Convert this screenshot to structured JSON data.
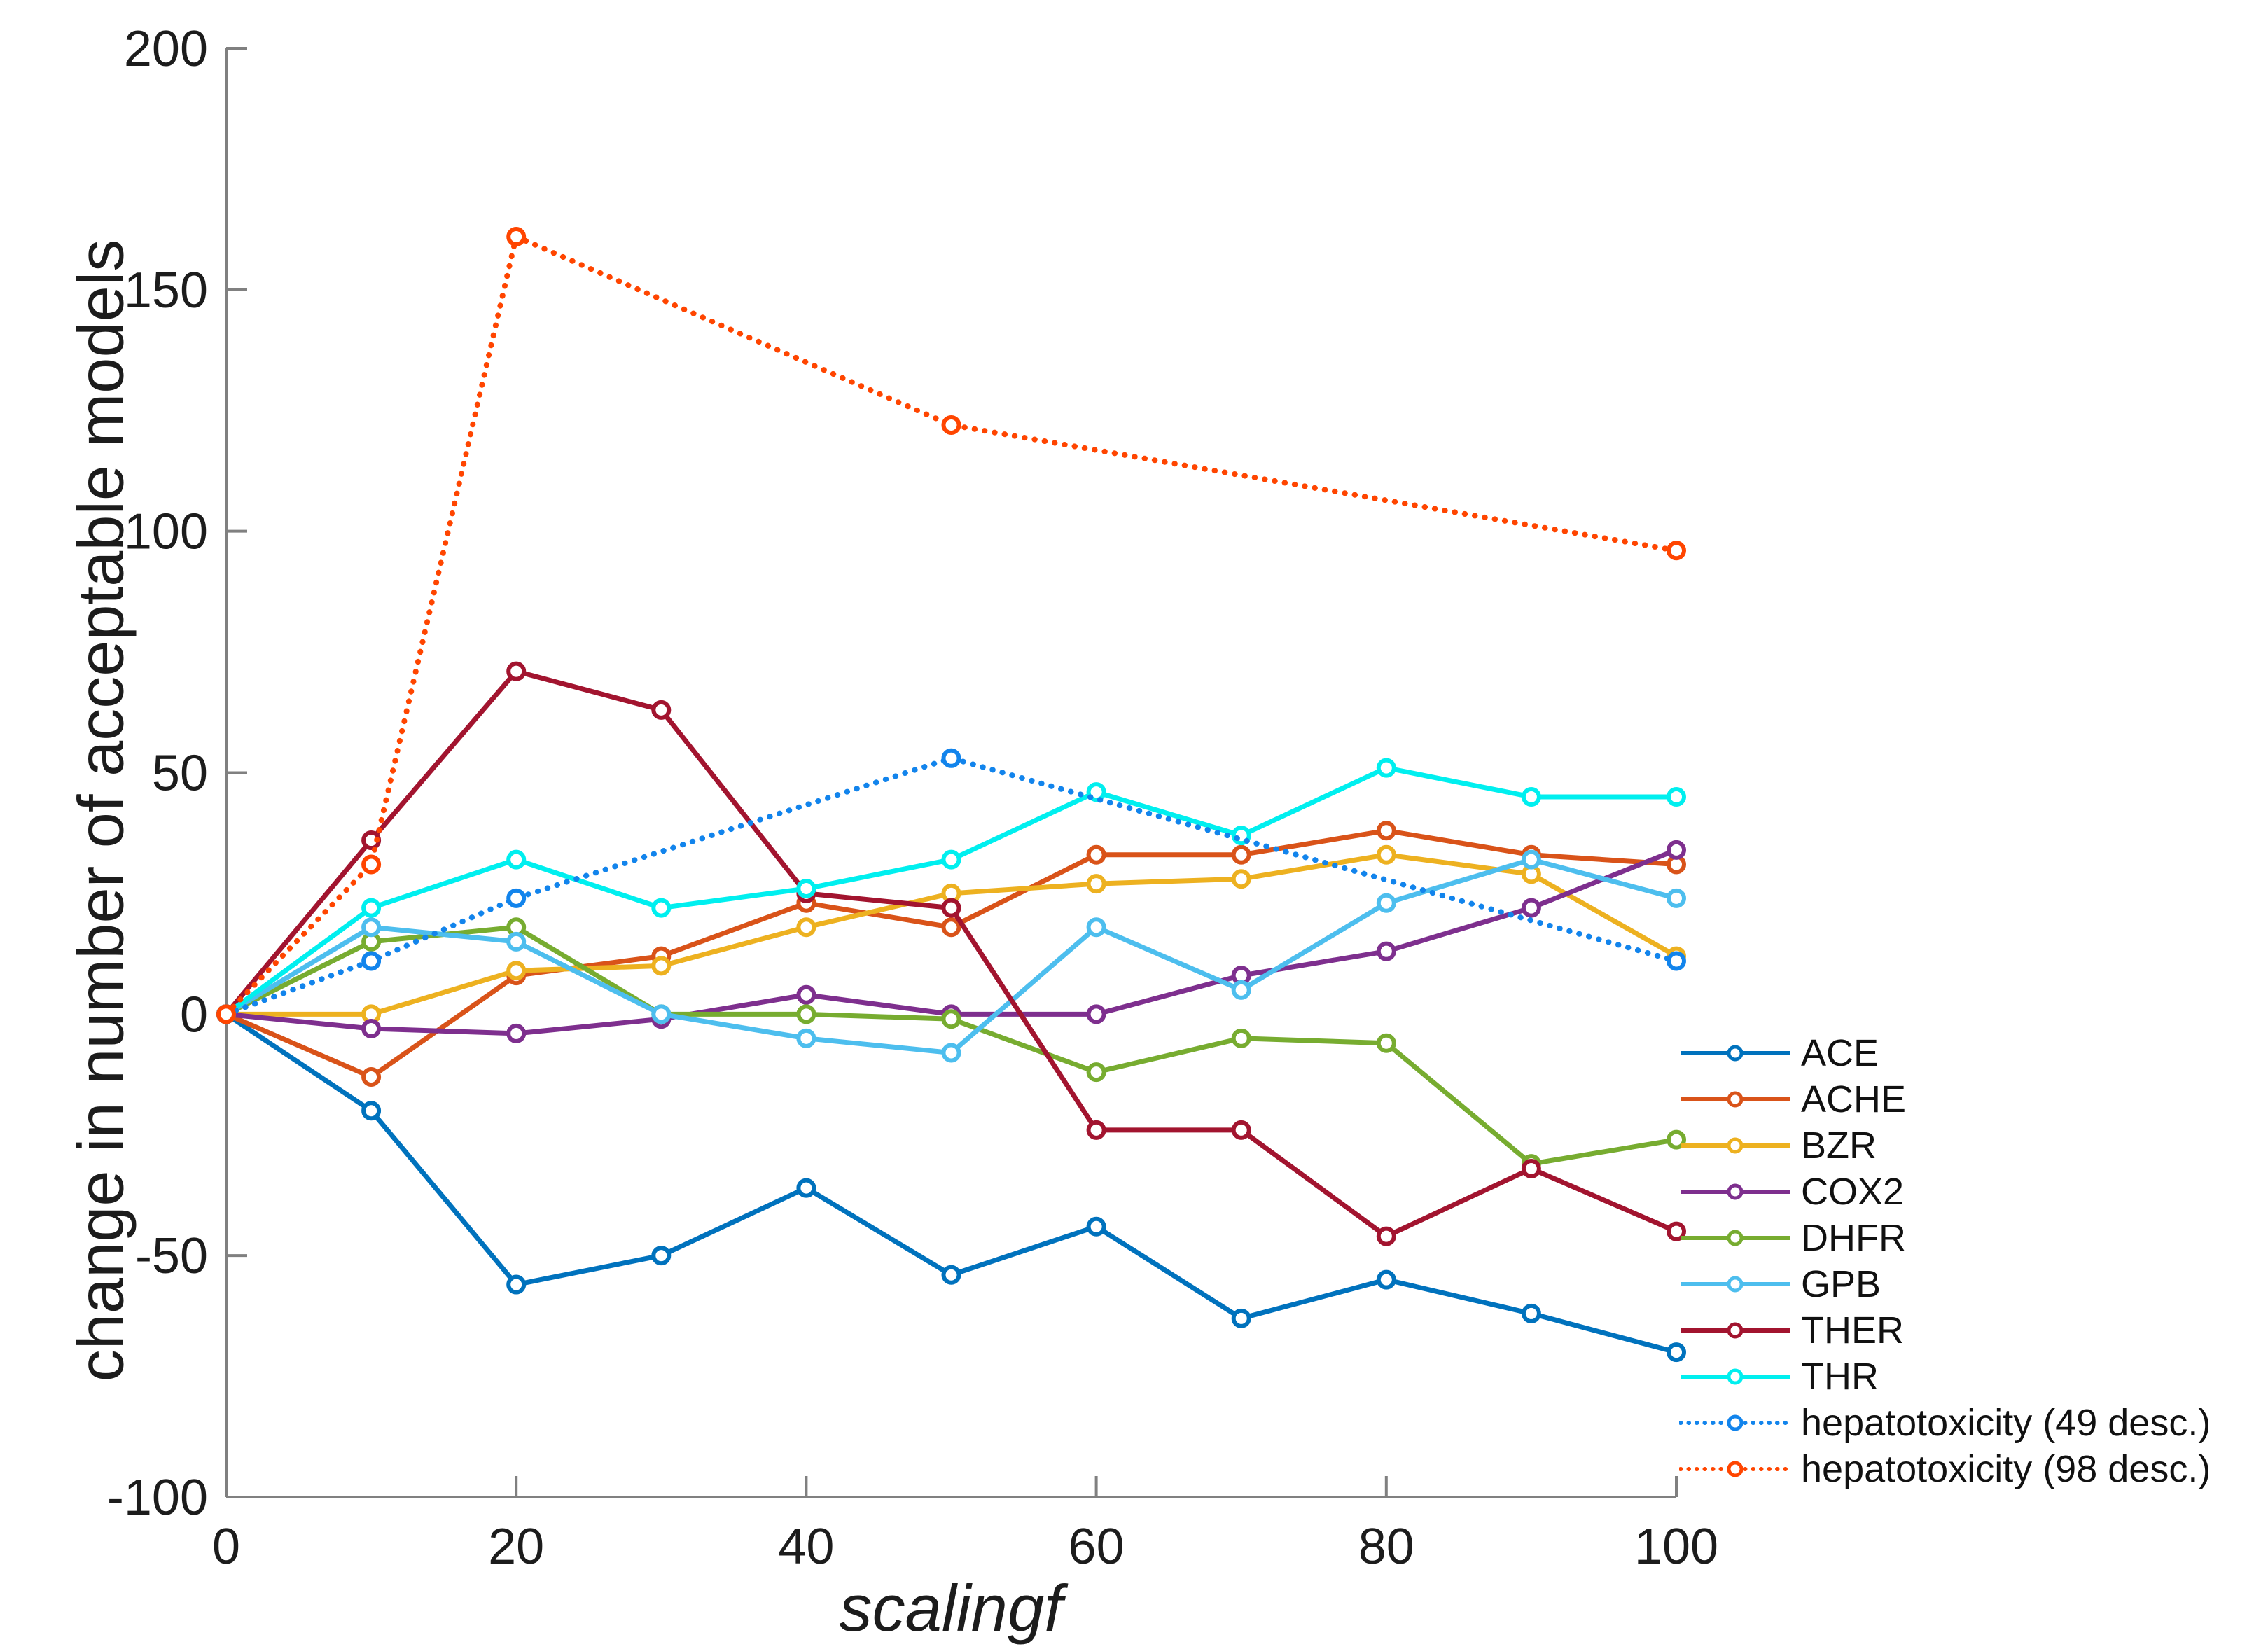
{
  "figure": {
    "background": "#ffffff",
    "axis_line_color": "#808080",
    "tick_label_color": "#1c1c1c",
    "tick_label_font_px": 72,
    "axis_label_color": "#1c1c1c"
  },
  "chart_data": {
    "type": "line",
    "title": "",
    "xlabel": "scalingf",
    "ylabel": "change in number of acceptable models",
    "xlim": [
      0,
      100
    ],
    "ylim": [
      -100,
      200
    ],
    "xticks": [
      0,
      20,
      40,
      60,
      80,
      100
    ],
    "yticks": [
      -100,
      -50,
      0,
      50,
      100,
      150,
      200
    ],
    "grid": false,
    "legend_position": "outside-right-bottom",
    "marker": "open-circle",
    "series": [
      {
        "name": "ACE",
        "color": "#0072BD",
        "style": "solid",
        "x": [
          0,
          10,
          20,
          30,
          40,
          50,
          60,
          70,
          80,
          90,
          100
        ],
        "y": [
          0,
          -20,
          -56,
          -50,
          -36,
          -54,
          -44,
          -63,
          -55,
          -62,
          -70
        ]
      },
      {
        "name": "ACHE",
        "color": "#D95319",
        "style": "solid",
        "x": [
          0,
          10,
          20,
          30,
          40,
          50,
          60,
          70,
          80,
          90,
          100
        ],
        "y": [
          0,
          -13,
          8,
          12,
          23,
          18,
          33,
          33,
          38,
          33,
          31
        ]
      },
      {
        "name": "BZR",
        "color": "#EDB120",
        "style": "solid",
        "x": [
          0,
          10,
          20,
          30,
          40,
          50,
          60,
          70,
          80,
          90,
          100
        ],
        "y": [
          0,
          0,
          9,
          10,
          18,
          25,
          27,
          28,
          33,
          29,
          12
        ]
      },
      {
        "name": "COX2",
        "color": "#7E2F8E",
        "style": "solid",
        "x": [
          0,
          10,
          20,
          30,
          40,
          50,
          60,
          70,
          80,
          90,
          100
        ],
        "y": [
          0,
          -3,
          -4,
          -1,
          4,
          0,
          0,
          8,
          13,
          22,
          34
        ]
      },
      {
        "name": "DHFR",
        "color": "#77AC30",
        "style": "solid",
        "x": [
          0,
          10,
          20,
          30,
          40,
          50,
          60,
          70,
          80,
          90,
          100
        ],
        "y": [
          0,
          15,
          18,
          0,
          0,
          -1,
          -12,
          -5,
          -6,
          -31,
          -26
        ]
      },
      {
        "name": "GPB",
        "color": "#4DBEEE",
        "style": "solid",
        "x": [
          0,
          10,
          20,
          30,
          40,
          50,
          60,
          70,
          80,
          90,
          100
        ],
        "y": [
          0,
          18,
          15,
          0,
          -5,
          -8,
          18,
          5,
          23,
          32,
          24
        ]
      },
      {
        "name": "THER",
        "color": "#A2142F",
        "style": "solid",
        "x": [
          0,
          10,
          20,
          30,
          40,
          50,
          60,
          70,
          80,
          90,
          100
        ],
        "y": [
          0,
          36,
          71,
          63,
          25,
          22,
          -24,
          -24,
          -46,
          -32,
          -45
        ]
      },
      {
        "name": "THR",
        "color": "#00EFEF",
        "style": "solid",
        "x": [
          0,
          10,
          20,
          30,
          40,
          50,
          60,
          70,
          80,
          90,
          100
        ],
        "y": [
          0,
          22,
          32,
          22,
          26,
          32,
          46,
          37,
          51,
          45,
          45
        ]
      },
      {
        "name": "hepatotoxicity (49 desc.)",
        "color": "#1284EC",
        "style": "dotted",
        "x": [
          0,
          10,
          20,
          50,
          100
        ],
        "y": [
          0,
          11,
          24,
          53,
          11
        ]
      },
      {
        "name": "hepatotoxicity (98 desc.)",
        "color": "#FF4500",
        "style": "dotted",
        "x": [
          0,
          10,
          20,
          50,
          100
        ],
        "y": [
          0,
          31,
          161,
          122,
          96
        ]
      }
    ]
  }
}
